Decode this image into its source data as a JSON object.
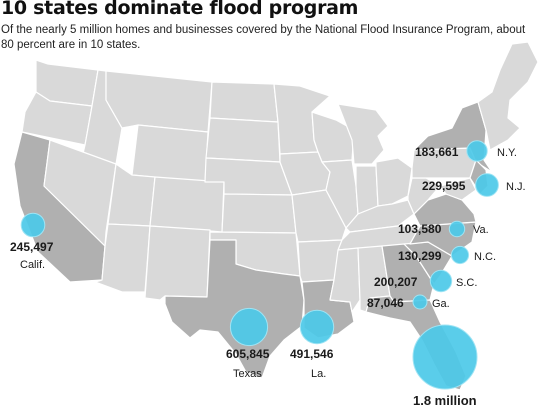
{
  "title": "10 states dominate flood program",
  "subtitle": "Of the nearly 5 million homes and businesses covered by the National Flood Insurance Program, about 80 percent are in 10 states.",
  "colors": {
    "base_state": "#d9d9d9",
    "highlight_state": "#b0b0b0",
    "border": "#ffffff",
    "bubble": "#4cc9e8"
  },
  "states": [
    {
      "id": "fla",
      "value": "1.8 million",
      "abbr": "",
      "policies": 1800000
    },
    {
      "id": "texas",
      "value": "605,845",
      "abbr": "Texas",
      "policies": 605845
    },
    {
      "id": "la",
      "value": "491,546",
      "abbr": "La.",
      "policies": 491546
    },
    {
      "id": "calif",
      "value": "245,497",
      "abbr": "Calif.",
      "policies": 245497
    },
    {
      "id": "nj",
      "value": "229,595",
      "abbr": "N.J.",
      "policies": 229595
    },
    {
      "id": "sc",
      "value": "200,207",
      "abbr": "S.C.",
      "policies": 200207
    },
    {
      "id": "ny",
      "value": "183,661",
      "abbr": "N.Y.",
      "policies": 183661
    },
    {
      "id": "nc",
      "value": "130,299",
      "abbr": "N.C.",
      "policies": 130299
    },
    {
      "id": "va",
      "value": "103,580",
      "abbr": "Va.",
      "policies": 103580
    },
    {
      "id": "ga",
      "value": "87,046",
      "abbr": "Ga.",
      "policies": 87046
    }
  ]
}
